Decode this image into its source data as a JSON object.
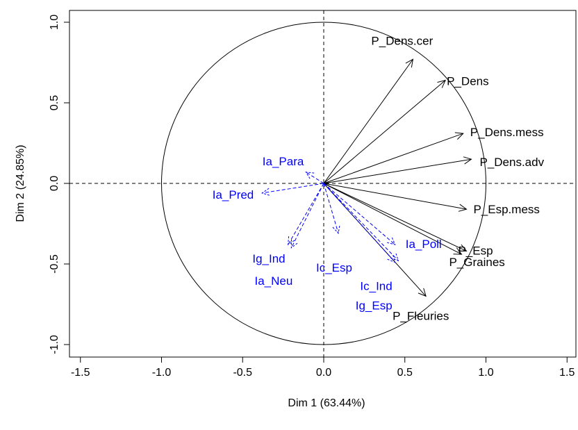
{
  "chart_data": {
    "type": "pca-correlation-circle",
    "xlabel": "Dim 1 (63.44%)",
    "ylabel": "Dim 2 (24.85%)",
    "xlim": [
      -1.5,
      1.5
    ],
    "ylim": [
      -1.0,
      1.0
    ],
    "x_ticks": [
      -1.5,
      -1.0,
      -0.5,
      0.0,
      0.5,
      1.0,
      1.5
    ],
    "y_ticks": [
      -1.0,
      -0.5,
      0.0,
      0.5,
      1.0
    ],
    "x_tick_labels": [
      "-1.5",
      "-1.0",
      "-0.5",
      "0.0",
      "0.5",
      "1.0",
      "1.5"
    ],
    "y_tick_labels": [
      "-1.0",
      "-0.5",
      "0.0",
      "0.5",
      "1.0"
    ],
    "unit_circle": true,
    "reference_lines": "dashed at x=0 and y=0",
    "colors": {
      "active": "#000000",
      "supplementary": "#0000ff"
    },
    "series": [
      {
        "name": "",
        "line_style": "solid",
        "color": "#000000",
        "variables": [
          {
            "label": "P_Dens.cer",
            "x": 0.55,
            "y": 0.77
          },
          {
            "label": "P_Dens",
            "x": 0.75,
            "y": 0.64
          },
          {
            "label": "P_Dens.mess",
            "x": 0.86,
            "y": 0.31
          },
          {
            "label": "P_Dens.adv",
            "x": 0.91,
            "y": 0.15
          },
          {
            "label": "P_Esp.mess",
            "x": 0.88,
            "y": -0.16
          },
          {
            "label": "P_Esp",
            "x": 0.88,
            "y": -0.42
          },
          {
            "label": "P_Graines",
            "x": 0.85,
            "y": -0.44
          },
          {
            "label": "P_Fleuries",
            "x": 0.63,
            "y": -0.7
          }
        ]
      },
      {
        "name": "",
        "line_style": "dashed",
        "color": "#0000ff",
        "variables": [
          {
            "label": "Ia_Para",
            "x": -0.11,
            "y": 0.07
          },
          {
            "label": "Ia_Pred",
            "x": -0.38,
            "y": -0.06
          },
          {
            "label": "Ig_Ind",
            "x": -0.22,
            "y": -0.38
          },
          {
            "label": "Ia_Neu",
            "x": -0.2,
            "y": -0.4
          },
          {
            "label": "Ic_Esp",
            "x": 0.09,
            "y": -0.31
          },
          {
            "label": "Ia_Poll",
            "x": 0.44,
            "y": -0.38
          },
          {
            "label": "Ic_Ind",
            "x": 0.46,
            "y": -0.48
          },
          {
            "label": "Ig_Esp",
            "x": 0.44,
            "y": -0.49
          }
        ]
      }
    ]
  }
}
